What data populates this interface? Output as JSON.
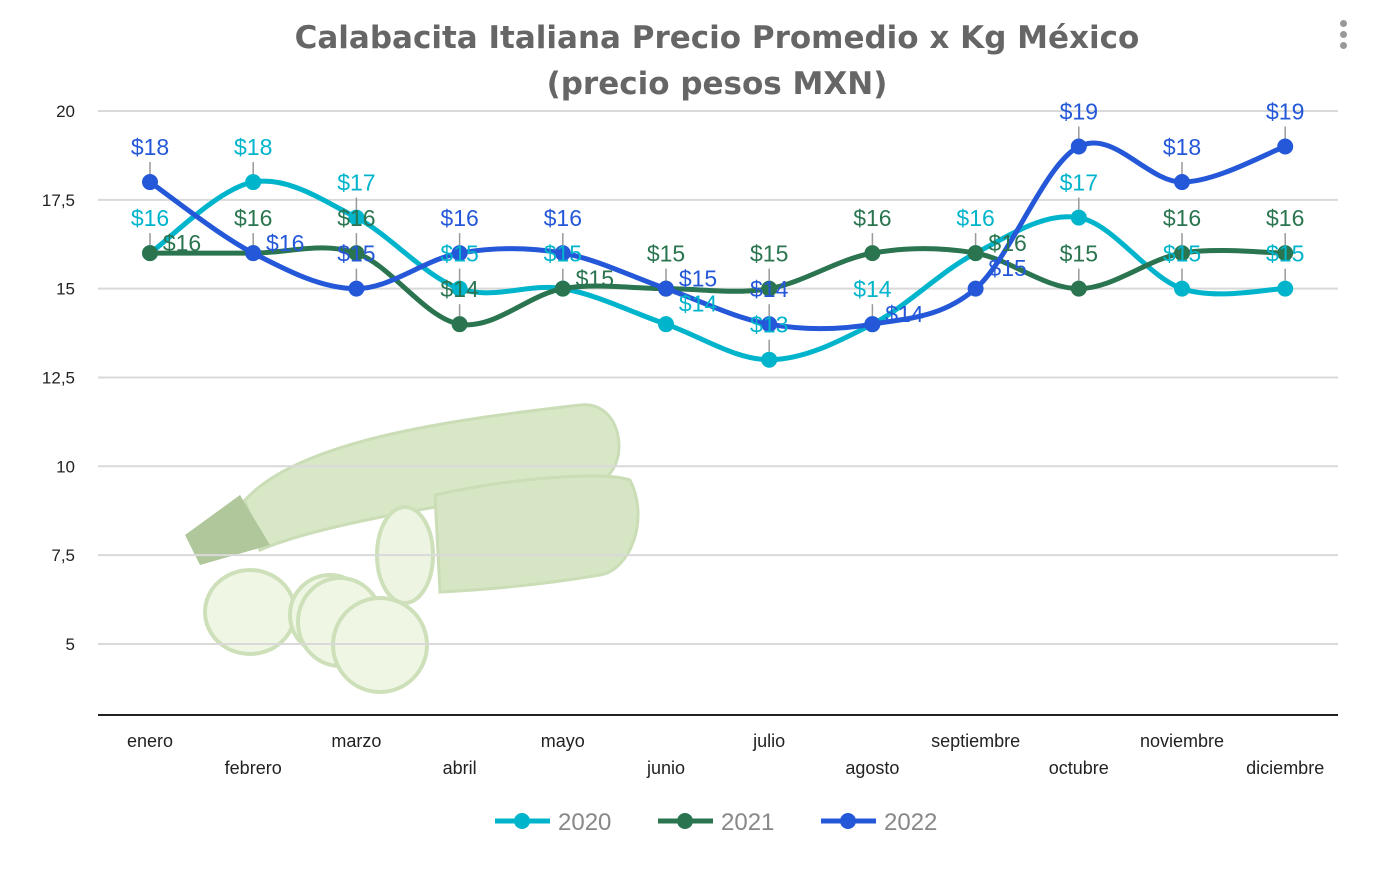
{
  "chart_data": {
    "type": "line",
    "title": [
      "Calabacita Italiana Precio Promedio x Kg México",
      "(precio pesos MXN)"
    ],
    "xlabel": "",
    "ylabel": "",
    "categories": [
      "enero",
      "febrero",
      "marzo",
      "abril",
      "mayo",
      "junio",
      "julio",
      "agosto",
      "septiembre",
      "octubre",
      "noviembre",
      "diciembre"
    ],
    "yticks": [
      "5",
      "7,5",
      "10",
      "12,5",
      "15",
      "17,5",
      "20"
    ],
    "ylim": [
      3,
      20
    ],
    "grid": true,
    "smooth": true,
    "legend_position": "bottom",
    "data_label_prefix": "$",
    "series": [
      {
        "name": "2020",
        "color": "#00B4CC",
        "values": [
          16,
          18,
          17,
          15,
          15,
          14,
          13,
          14,
          16,
          17,
          15,
          15
        ]
      },
      {
        "name": "2021",
        "color": "#2A7550",
        "values": [
          16,
          16,
          16,
          14,
          15,
          15,
          15,
          16,
          16,
          15,
          16,
          16
        ]
      },
      {
        "name": "2022",
        "color": "#2458D8",
        "values": [
          18,
          16,
          15,
          16,
          16,
          15,
          14,
          14,
          15,
          19,
          18,
          19
        ]
      }
    ]
  },
  "background_image": "zucchini-photo",
  "menu_icon": "more-vertical-icon"
}
